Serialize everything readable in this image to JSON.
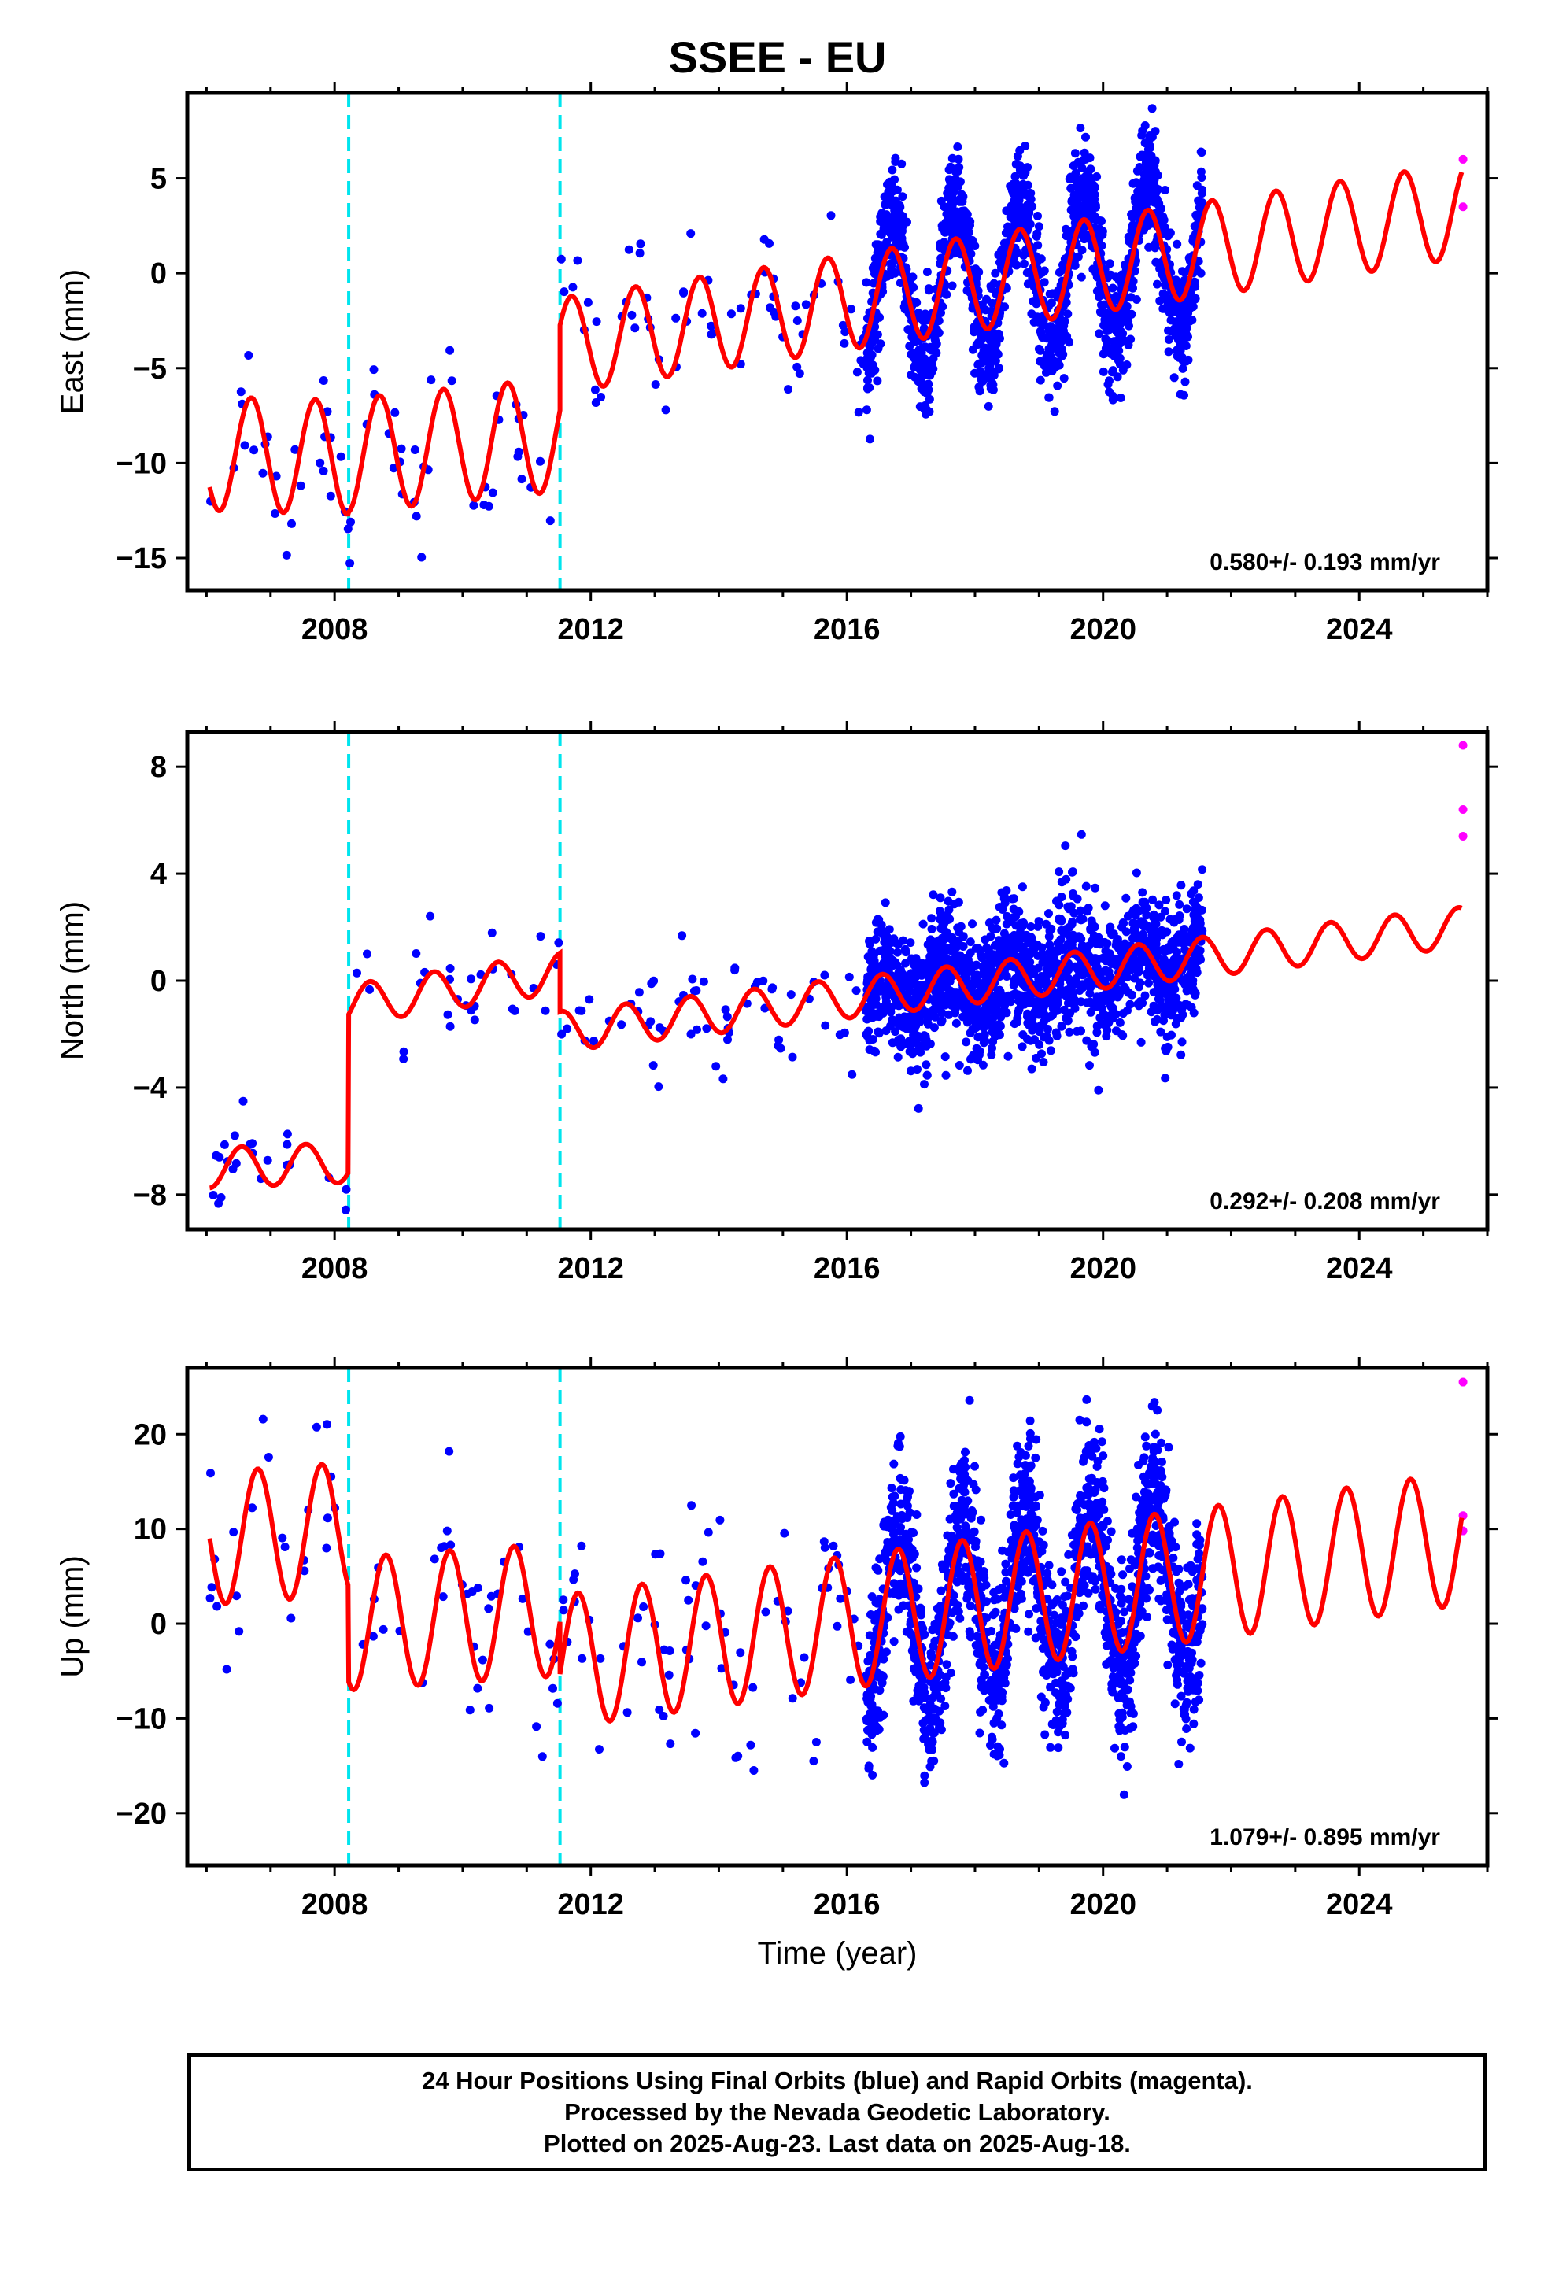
{
  "title": "SSEE - EU",
  "colors": {
    "final_orbit": "#0000ff",
    "rapid_orbit": "#ff00ff",
    "model": "#ff0000",
    "offset_line": "#00e5ee"
  },
  "footer": {
    "line1": "24 Hour Positions Using Final Orbits (blue) and Rapid Orbits (magenta).",
    "line2": "Processed by the Nevada Geodetic Laboratory.",
    "line3": "Plotted on 2025-Aug-23. Last data on 2025-Aug-18."
  },
  "chart_data": [
    {
      "type": "scatter",
      "ylabel": "East (mm)",
      "xlabel": "",
      "xlim": [
        2005.7,
        2026.0
      ],
      "ylim": [
        -16.7,
        9.5
      ],
      "xticks": [
        2008,
        2012,
        2016,
        2020,
        2024
      ],
      "yticks": [
        -15,
        -10,
        -5,
        0,
        5
      ],
      "rate_text": "0.580+/- 0.193 mm/yr",
      "offset_lines": [
        2008.22,
        2011.52
      ],
      "model": {
        "segments": [
          {
            "start": 2006.05,
            "end": 2008.22,
            "base_start": -9.5,
            "base_end": -9.7,
            "amp": 3.0
          },
          {
            "start": 2008.22,
            "end": 2011.52,
            "base_start": -9.6,
            "base_end": -8.5,
            "amp": 3.0
          },
          {
            "start": 2011.52,
            "end": 2025.6,
            "base_start": -3.8,
            "base_end": 3.3,
            "amp": 2.5
          }
        ],
        "phase": 0.45
      },
      "scatter_regions": [
        {
          "start": 2006.05,
          "end": 2008.22,
          "count": 26,
          "spread": 1.9
        },
        {
          "start": 2008.22,
          "end": 2011.52,
          "count": 36,
          "spread": 1.7
        },
        {
          "start": 2011.52,
          "end": 2016.3,
          "count": 70,
          "spread": 1.5
        },
        {
          "start": 2016.3,
          "end": 2021.55,
          "count": 1700,
          "spread": 1.5,
          "amp_scale": 1.6
        }
      ],
      "rapid_points": [
        {
          "x": 2025.62,
          "y": 6.0
        },
        {
          "x": 2025.62,
          "y": 3.5
        }
      ]
    },
    {
      "type": "scatter",
      "ylabel": "North (mm)",
      "xlabel": "",
      "xlim": [
        2005.7,
        2026.0
      ],
      "ylim": [
        -9.3,
        9.3
      ],
      "xticks": [
        2008,
        2012,
        2016,
        2020,
        2024
      ],
      "yticks": [
        -8,
        -4,
        0,
        4,
        8
      ],
      "rate_text": "0.292+/- 0.208 mm/yr",
      "offset_lines": [
        2008.22,
        2011.52
      ],
      "model": {
        "segments": [
          {
            "start": 2006.05,
            "end": 2008.22,
            "base_start": -7.0,
            "base_end": -6.8,
            "amp": 0.75
          },
          {
            "start": 2008.22,
            "end": 2011.52,
            "base_start": -0.9,
            "base_end": 0.3,
            "amp": 0.75
          },
          {
            "start": 2011.52,
            "end": 2025.6,
            "base_start": -1.9,
            "base_end": 2.0,
            "amp": 0.75
          }
        ],
        "phase": 0.3
      },
      "scatter_regions": [
        {
          "start": 2006.05,
          "end": 2008.22,
          "count": 24,
          "spread": 1.1
        },
        {
          "start": 2008.22,
          "end": 2011.52,
          "count": 30,
          "spread": 1.1
        },
        {
          "start": 2011.52,
          "end": 2016.3,
          "count": 60,
          "spread": 1.2
        },
        {
          "start": 2016.3,
          "end": 2021.55,
          "count": 1700,
          "spread": 1.2,
          "amp_scale": 1.0
        }
      ],
      "rapid_points": [
        {
          "x": 2025.62,
          "y": 8.8
        },
        {
          "x": 2025.62,
          "y": 6.4
        },
        {
          "x": 2025.62,
          "y": 5.4
        }
      ]
    },
    {
      "type": "scatter",
      "ylabel": "Up (mm)",
      "xlabel": "Time (year)",
      "xlim": [
        2005.7,
        2026.0
      ],
      "ylim": [
        -25.5,
        27.0
      ],
      "xticks": [
        2008,
        2012,
        2016,
        2020,
        2024
      ],
      "yticks": [
        -20,
        -10,
        0,
        10,
        20
      ],
      "rate_text": "1.079+/- 0.895 mm/yr",
      "offset_lines": [
        2008.22,
        2011.52
      ],
      "model": {
        "segments": [
          {
            "start": 2006.05,
            "end": 2008.22,
            "base_start": 9.0,
            "base_end": 10.0,
            "amp": 7.0
          },
          {
            "start": 2008.22,
            "end": 2011.52,
            "base_start": 0.0,
            "base_end": 1.5,
            "amp": 7.0
          },
          {
            "start": 2011.52,
            "end": 2025.6,
            "base_start": -4.0,
            "base_end": 9.0,
            "amp": 7.0
          }
        ],
        "phase": 0.55
      },
      "scatter_regions": [
        {
          "start": 2006.05,
          "end": 2008.22,
          "count": 24,
          "spread": 4.5
        },
        {
          "start": 2008.22,
          "end": 2011.52,
          "count": 36,
          "spread": 5.0
        },
        {
          "start": 2011.52,
          "end": 2016.3,
          "count": 70,
          "spread": 5.5
        },
        {
          "start": 2016.3,
          "end": 2021.55,
          "count": 1700,
          "spread": 4.5,
          "amp_scale": 1.3
        }
      ],
      "rapid_points": [
        {
          "x": 2025.62,
          "y": 25.5
        },
        {
          "x": 2025.62,
          "y": 11.4
        },
        {
          "x": 2025.62,
          "y": 9.8
        }
      ]
    }
  ]
}
